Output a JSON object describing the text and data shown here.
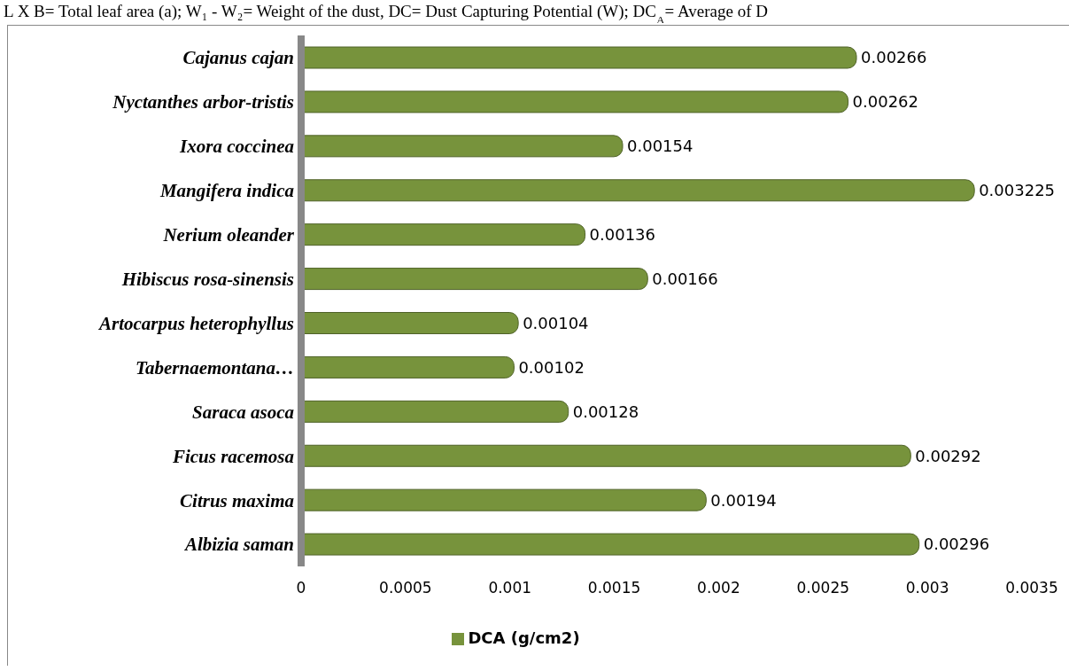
{
  "chart_data": {
    "type": "bar",
    "orientation": "horizontal",
    "annotations": [
      "L X B= Total leaf area (a); W₁ - W₂= Weight of the dust, DC= Dust Capturing Potential (W); DC$_{A}$= Average of D"
    ],
    "categories": [
      "Cajanus cajan",
      "Nyctanthes arbor-tristis",
      "Ixora coccinea",
      "Mangifera indica",
      "Nerium oleander",
      "Hibiscus rosa-sinensis",
      "Artocarpus heterophyllus",
      "Tabernaemontana…",
      "Saraca asoca",
      "Ficus racemosa",
      "Citrus maxima",
      "Albizia saman"
    ],
    "series": [
      {
        "name": "DCA (g/cm2)",
        "color": "#77933c",
        "values": [
          0.00266,
          0.00262,
          0.00154,
          0.003225,
          0.00136,
          0.00166,
          0.00104,
          0.00102,
          0.00128,
          0.00292,
          0.00194,
          0.00296
        ]
      }
    ],
    "xlim": [
      0,
      0.0035
    ],
    "xticks": [
      0,
      0.0005,
      0.001,
      0.0015,
      0.002,
      0.0025,
      0.003,
      0.0035
    ],
    "data_labels": true,
    "legend": "bottom",
    "grid": false
  }
}
